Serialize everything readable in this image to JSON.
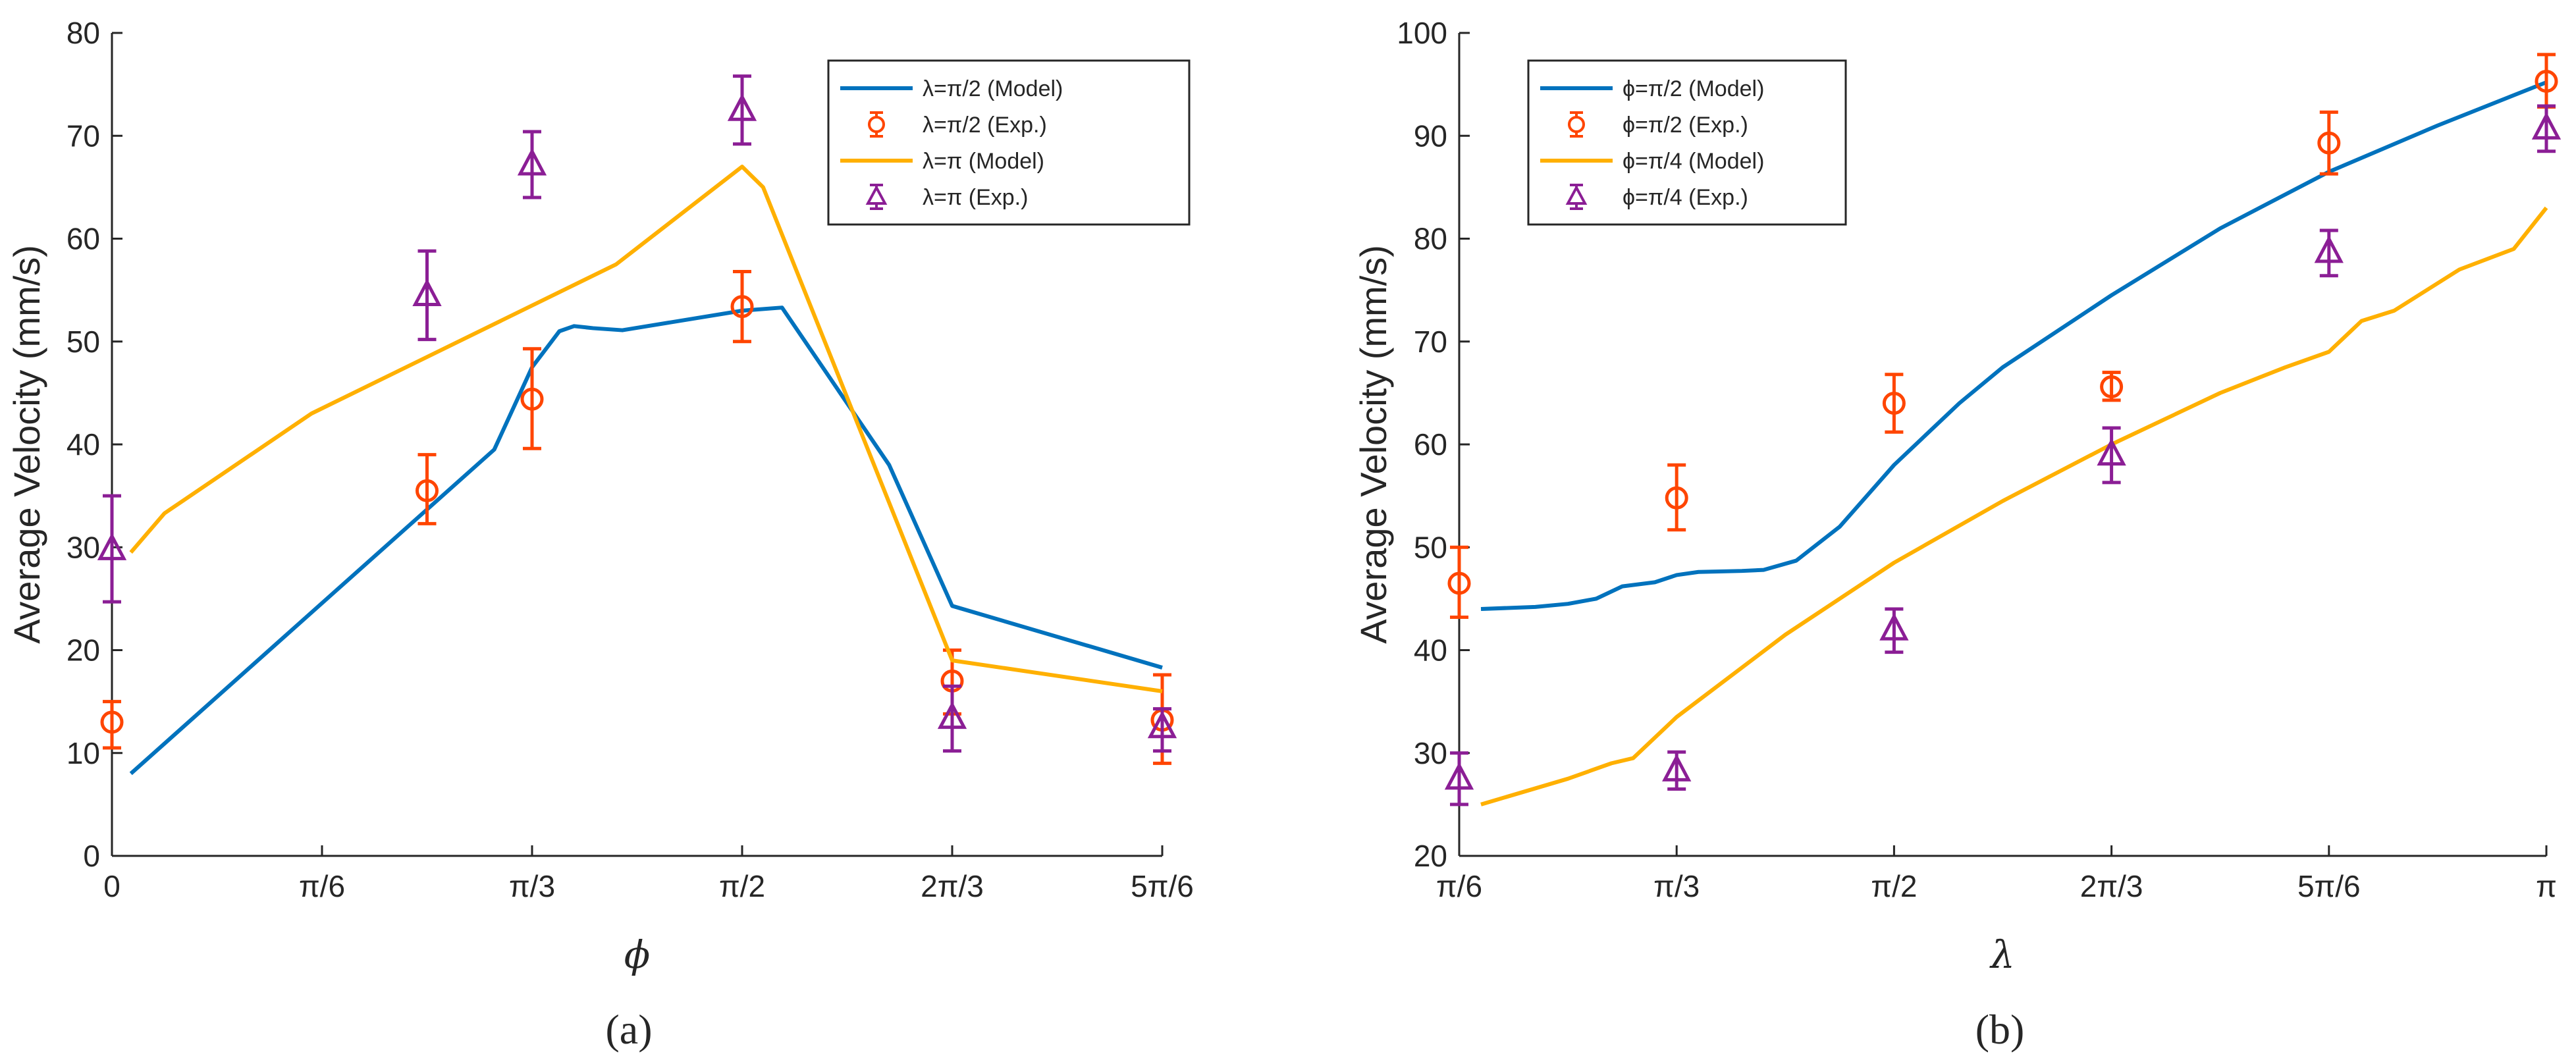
{
  "colors": {
    "blue": "#0072BD",
    "orange": "#FF4500",
    "yellow": "#FFB000",
    "purple": "#8B1E95",
    "axis": "#262626"
  },
  "chart_data": [
    {
      "type": "line",
      "panel_label": "(a)",
      "panel_letter": "a",
      "xlabel": "ϕ",
      "ylabel": "Average Velocity (mm/s)",
      "x_unit": "π/6",
      "xlim": [
        0,
        5
      ],
      "ylim": [
        0,
        80
      ],
      "xticks": [
        0,
        1,
        2,
        3,
        4,
        5
      ],
      "xtick_labels": [
        "0",
        "π/6",
        "π/3",
        "π/2",
        "2π/3",
        "5π/6"
      ],
      "yticks": [
        0,
        10,
        20,
        30,
        40,
        50,
        60,
        70,
        80
      ],
      "legend_position": "top-right",
      "series": [
        {
          "name": "λ=π/2 (Model)",
          "kind": "line",
          "color": "#0072BD",
          "points": [
            [
              0.09,
              8
            ],
            [
              1.82,
              39.5
            ],
            [
              2.0,
              47.5
            ],
            [
              2.13,
              51
            ],
            [
              2.2,
              51.5
            ],
            [
              2.29,
              51.3
            ],
            [
              2.43,
              51.1
            ],
            [
              3.0,
              53
            ],
            [
              3.19,
              53.3
            ],
            [
              3.7,
              38
            ],
            [
              4.0,
              24.3
            ],
            [
              5.0,
              18.3
            ]
          ]
        },
        {
          "name": "λ=π/2 (Exp.)",
          "kind": "errorbar",
          "marker": "circle",
          "color": "#FF4500",
          "points": [
            [
              0,
              13,
              10.5,
              15
            ],
            [
              1.5,
              35.5,
              32.3,
              39
            ],
            [
              2,
              44.4,
              39.6,
              49.3
            ],
            [
              3,
              53.4,
              50,
              56.8
            ],
            [
              4,
              17,
              13.8,
              20
            ],
            [
              5,
              13.2,
              9,
              17.6
            ]
          ]
        },
        {
          "name": "λ=π (Model)",
          "kind": "line",
          "color": "#FFB000",
          "points": [
            [
              0.09,
              29.5
            ],
            [
              0.25,
              33.3
            ],
            [
              0.95,
              43
            ],
            [
              2.4,
              57.5
            ],
            [
              3.0,
              67
            ],
            [
              3.1,
              65
            ],
            [
              4.0,
              19
            ],
            [
              5.0,
              16
            ]
          ]
        },
        {
          "name": "λ=π (Exp.)",
          "kind": "errorbar",
          "marker": "triangle",
          "color": "#8B1E95",
          "points": [
            [
              0,
              29.8,
              24.7,
              35
            ],
            [
              1.5,
              54.5,
              50.2,
              58.8
            ],
            [
              2,
              67.2,
              64,
              70.4
            ],
            [
              3,
              72.5,
              69.2,
              75.8
            ],
            [
              4,
              13.4,
              10.2,
              16.5
            ],
            [
              5,
              12.5,
              10.2,
              14.3
            ]
          ]
        }
      ]
    },
    {
      "type": "line",
      "panel_label": "(b)",
      "panel_letter": "b",
      "xlabel": "λ",
      "ylabel": "Average Velocity (mm/s)",
      "x_unit": "π/6",
      "xlim": [
        1,
        6
      ],
      "ylim": [
        20,
        100
      ],
      "xticks": [
        1,
        2,
        3,
        4,
        5,
        6
      ],
      "xtick_labels": [
        "π/6",
        "π/3",
        "π/2",
        "2π/3",
        "5π/6",
        "π"
      ],
      "yticks": [
        20,
        30,
        40,
        50,
        60,
        70,
        80,
        90,
        100
      ],
      "legend_position": "top-left",
      "series": [
        {
          "name": "ϕ=π/2 (Model)",
          "kind": "line",
          "color": "#0072BD",
          "points": [
            [
              1.1,
              44
            ],
            [
              1.35,
              44.2
            ],
            [
              1.5,
              44.5
            ],
            [
              1.63,
              45
            ],
            [
              1.75,
              46.2
            ],
            [
              1.9,
              46.6
            ],
            [
              2,
              47.3
            ],
            [
              2.1,
              47.6
            ],
            [
              2.3,
              47.7
            ],
            [
              2.4,
              47.8
            ],
            [
              2.55,
              48.7
            ],
            [
              2.75,
              52
            ],
            [
              3,
              58
            ],
            [
              3.3,
              64
            ],
            [
              3.5,
              67.5
            ],
            [
              4,
              74.5
            ],
            [
              4.5,
              81
            ],
            [
              5,
              86.5
            ],
            [
              5.5,
              91
            ],
            [
              6,
              95.2
            ]
          ]
        },
        {
          "name": "ϕ=π/2 (Exp.)",
          "kind": "errorbar",
          "marker": "circle",
          "color": "#FF4500",
          "points": [
            [
              1,
              46.5,
              43.2,
              50
            ],
            [
              2,
              54.8,
              51.7,
              58
            ],
            [
              3,
              64,
              61.2,
              66.8
            ],
            [
              4,
              65.6,
              64.3,
              67
            ],
            [
              5,
              89.3,
              86.3,
              92.3
            ],
            [
              6,
              95.3,
              92.8,
              97.9
            ]
          ]
        },
        {
          "name": "ϕ=π/4 (Model)",
          "kind": "line",
          "color": "#FFB000",
          "points": [
            [
              1.1,
              25
            ],
            [
              1.5,
              27.5
            ],
            [
              1.7,
              29
            ],
            [
              1.8,
              29.5
            ],
            [
              2,
              33.5
            ],
            [
              2.5,
              41.5
            ],
            [
              3,
              48.5
            ],
            [
              3.5,
              54.5
            ],
            [
              4,
              60
            ],
            [
              4.5,
              65
            ],
            [
              4.8,
              67.5
            ],
            [
              5,
              69
            ],
            [
              5.15,
              72
            ],
            [
              5.3,
              73
            ],
            [
              5.6,
              77
            ],
            [
              5.85,
              79
            ],
            [
              6,
              83
            ]
          ]
        },
        {
          "name": "ϕ=π/4 (Exp.)",
          "kind": "errorbar",
          "marker": "triangle",
          "color": "#8B1E95",
          "points": [
            [
              1,
              27.5,
              25,
              30
            ],
            [
              2,
              28.3,
              26.5,
              30.1
            ],
            [
              3,
              42,
              39.8,
              44
            ],
            [
              4,
              59,
              56.3,
              61.6
            ],
            [
              5,
              78.7,
              76.4,
              80.8
            ],
            [
              6,
              90.7,
              88.5,
              92.9
            ]
          ]
        }
      ]
    }
  ]
}
